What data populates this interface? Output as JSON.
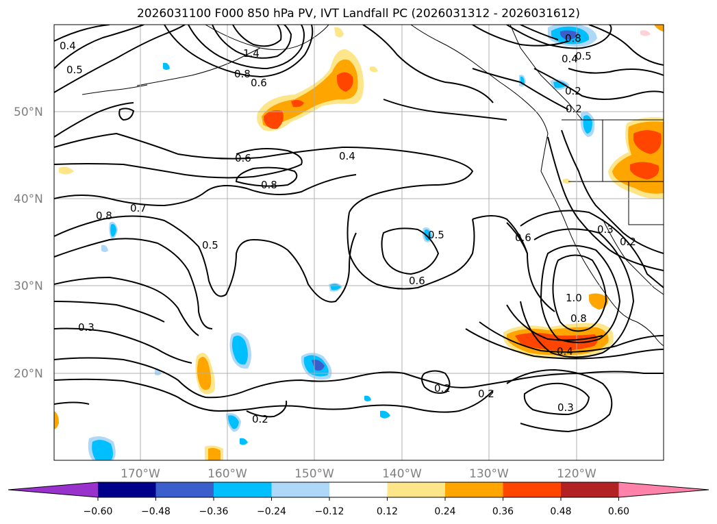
{
  "title": "2026031100 F000 850 hPa PV, IVT Landfall PC (2026031312 - 2026031612)",
  "map": {
    "lat_labels": [
      "50°N",
      "40°N",
      "30°N",
      "20°N"
    ],
    "lon_labels": [
      "170°W",
      "160°W",
      "150°W",
      "140°W",
      "130°W",
      "120°W"
    ]
  },
  "contour_labels": [
    "0.4",
    "0.5",
    "1.4",
    "0.8",
    "0.6",
    "0.8",
    "0.5",
    "0.4",
    "0.2",
    "0.2",
    "0.6",
    "0.4",
    "0.8",
    "0.7",
    "0.8",
    "0.5",
    "0.5",
    "0.6",
    "0.6",
    "0.3",
    "0.2",
    "1.0",
    "0.8",
    "0.4",
    "0.3",
    "0.2",
    "0.2",
    "0.2",
    "0.3"
  ],
  "colorbar": {
    "ticks": [
      "−0.60",
      "−0.48",
      "−0.36",
      "−0.24",
      "−0.12",
      "0.12",
      "0.24",
      "0.36",
      "0.48",
      "0.60"
    ],
    "colors": [
      "#9932cc",
      "#00008b",
      "#3a5fcd",
      "#00bfff",
      "#add8f8",
      "#ffffff",
      "#fde68a",
      "#ffa500",
      "#ff4500",
      "#b22222",
      "#ff82ab"
    ]
  }
}
